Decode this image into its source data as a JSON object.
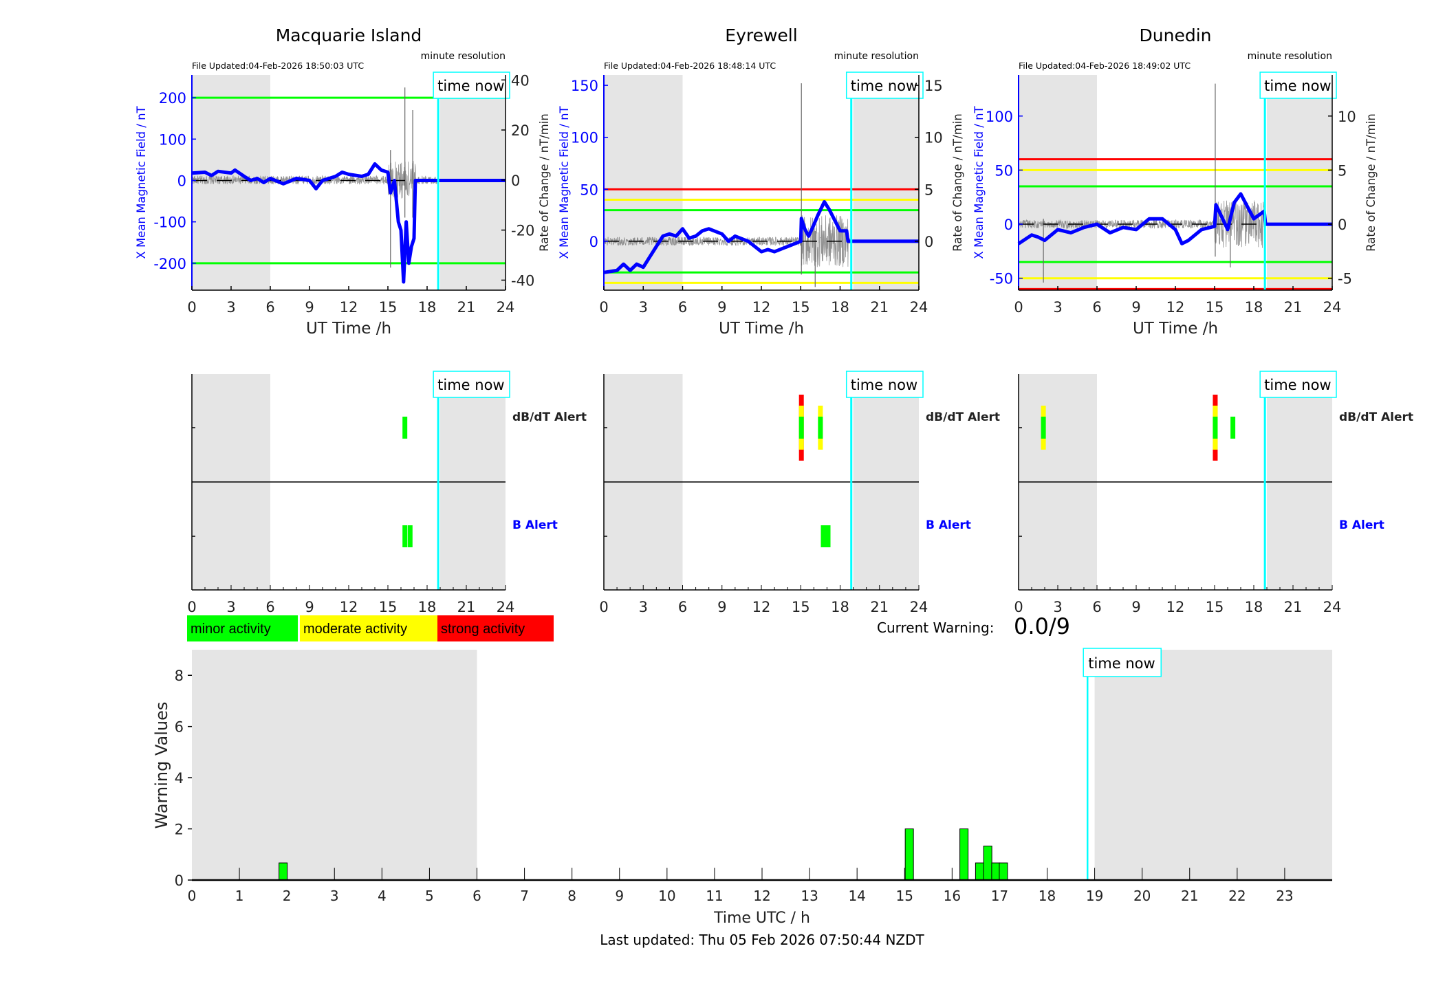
{
  "chart_data": [
    {
      "type": "line",
      "title": "Macquarie Island",
      "file_updated": "File Updated:04-Feb-2026 18:50:03 UTC",
      "resolution_note": "minute resolution",
      "time_now_label": "time now",
      "time_now_h": 18.85,
      "xlabel": "UT Time /h",
      "ylabel_left": "X Mean Magnetic Field / nT",
      "ylabel_right": "Rate of Change / nT/min",
      "xlim": [
        0,
        24
      ],
      "xticks": [
        "0",
        "3",
        "6",
        "9",
        "12",
        "15",
        "18",
        "21",
        "24"
      ],
      "ylim_left": [
        -265,
        255
      ],
      "yticks_left": [
        -200,
        -100,
        0,
        100,
        200
      ],
      "ylim_right": [
        -44,
        42
      ],
      "yticks_right": [
        -40,
        -20,
        0,
        20,
        40
      ],
      "night_shading_h": [
        [
          0,
          6
        ],
        [
          19,
          24
        ]
      ],
      "thresholds": [
        {
          "value": 200,
          "color": "#00ff00"
        },
        {
          "value": -200,
          "color": "#00ff00"
        }
      ],
      "x_mean_field": [
        [
          0,
          18
        ],
        [
          1,
          20
        ],
        [
          1.5,
          12
        ],
        [
          2,
          22
        ],
        [
          3,
          18
        ],
        [
          3.3,
          25
        ],
        [
          4,
          10
        ],
        [
          4.5,
          0
        ],
        [
          5,
          5
        ],
        [
          5.5,
          -5
        ],
        [
          6,
          5
        ],
        [
          7,
          -8
        ],
        [
          8,
          5
        ],
        [
          9,
          0
        ],
        [
          9.5,
          -20
        ],
        [
          10,
          0
        ],
        [
          11,
          10
        ],
        [
          11.5,
          20
        ],
        [
          12,
          15
        ],
        [
          13,
          10
        ],
        [
          13.5,
          15
        ],
        [
          14,
          40
        ],
        [
          14.5,
          25
        ],
        [
          15,
          20
        ],
        [
          15.2,
          -30
        ],
        [
          15.5,
          0
        ],
        [
          15.8,
          -100
        ],
        [
          16,
          -120
        ],
        [
          16.2,
          -245
        ],
        [
          16.4,
          -100
        ],
        [
          16.6,
          -200
        ],
        [
          16.8,
          -160
        ],
        [
          17,
          -140
        ],
        [
          17.1,
          0
        ],
        [
          24,
          0
        ]
      ],
      "rate_spikes": [
        [
          15.2,
          -35,
          12
        ],
        [
          16.3,
          -15,
          37
        ],
        [
          16.9,
          -15,
          28
        ]
      ],
      "rate_storm": [
        15,
        17.1,
        8
      ],
      "alerts": {
        "dbdt_label": "dB/dT Alert",
        "b_label": "B Alert",
        "dbdt": [
          {
            "h": 16.3,
            "level": "minor"
          }
        ],
        "b": [
          {
            "h": 16.3,
            "level": "minor"
          },
          {
            "h": 16.7,
            "level": "minor"
          }
        ]
      }
    },
    {
      "type": "line",
      "title": "Eyrewell",
      "file_updated": "File Updated:04-Feb-2026 18:48:14 UTC",
      "resolution_note": "minute resolution",
      "time_now_label": "time now",
      "time_now_h": 18.85,
      "xlabel": "UT Time /h",
      "ylabel_left": "X Mean Magnetic Field / nT",
      "ylabel_right": "Rate of Change / nT/min",
      "xlim": [
        0,
        24
      ],
      "xticks": [
        "0",
        "3",
        "6",
        "9",
        "12",
        "15",
        "18",
        "21",
        "24"
      ],
      "ylim_left": [
        -47,
        160
      ],
      "yticks_left": [
        0,
        50,
        100,
        150
      ],
      "ylim_right": [
        -4.7,
        16
      ],
      "yticks_right": [
        0,
        5,
        10,
        15
      ],
      "night_shading_h": [
        [
          0,
          6
        ],
        [
          19,
          24
        ]
      ],
      "thresholds": [
        {
          "value": 50,
          "color": "#ff0000"
        },
        {
          "value": 40,
          "color": "#ffff00"
        },
        {
          "value": 30,
          "color": "#00ff00"
        },
        {
          "value": -30,
          "color": "#00ff00"
        },
        {
          "value": -40,
          "color": "#ffff00"
        }
      ],
      "x_mean_field": [
        [
          0,
          -30
        ],
        [
          1,
          -28
        ],
        [
          1.5,
          -22
        ],
        [
          2,
          -28
        ],
        [
          2.5,
          -22
        ],
        [
          3,
          -25
        ],
        [
          3.5,
          -15
        ],
        [
          4,
          -5
        ],
        [
          4.5,
          5
        ],
        [
          5,
          7
        ],
        [
          5.5,
          5
        ],
        [
          6,
          12
        ],
        [
          6.5,
          3
        ],
        [
          7,
          5
        ],
        [
          7.5,
          10
        ],
        [
          8,
          12
        ],
        [
          9,
          7
        ],
        [
          9.5,
          0
        ],
        [
          10,
          5
        ],
        [
          11,
          0
        ],
        [
          12,
          -10
        ],
        [
          12.5,
          -8
        ],
        [
          13,
          -10
        ],
        [
          14,
          -5
        ],
        [
          15,
          0
        ],
        [
          15.05,
          22
        ],
        [
          15.3,
          12
        ],
        [
          15.6,
          5
        ],
        [
          15.9,
          13
        ],
        [
          16.3,
          25
        ],
        [
          16.8,
          38
        ],
        [
          17.2,
          30
        ],
        [
          18,
          10
        ],
        [
          18.5,
          10
        ],
        [
          18.6,
          0
        ],
        [
          24,
          0
        ]
      ],
      "rate_spikes": [
        [
          15.05,
          -3.2,
          15.2
        ],
        [
          16.1,
          -4.4,
          1
        ]
      ],
      "rate_storm": [
        15,
        18.6,
        2.5
      ],
      "alerts": {
        "dbdt_label": "dB/dT Alert",
        "b_label": "B Alert",
        "dbdt": [
          {
            "h": 15.05,
            "level": "strong"
          },
          {
            "h": 16.5,
            "level": "moderate"
          }
        ],
        "b": [
          {
            "h": 16.9,
            "level": "minor",
            "wide": true
          }
        ]
      }
    },
    {
      "type": "line",
      "title": "Dunedin",
      "file_updated": "File Updated:04-Feb-2026 18:49:02 UTC",
      "resolution_note": "minute resolution",
      "time_now_label": "time now",
      "time_now_h": 18.85,
      "xlabel": "UT Time /h",
      "ylabel_left": "X Mean Magnetic Field / nT",
      "ylabel_right": "Rate of Change / nT/min",
      "xlim": [
        0,
        24
      ],
      "xticks": [
        "0",
        "3",
        "6",
        "9",
        "12",
        "15",
        "18",
        "21",
        "24"
      ],
      "ylim_left": [
        -61,
        138
      ],
      "yticks_left": [
        -50,
        0,
        50,
        100
      ],
      "ylim_right": [
        -6.1,
        13.8
      ],
      "yticks_right": [
        -5,
        0,
        5,
        10
      ],
      "night_shading_h": [
        [
          0,
          6
        ],
        [
          19,
          24
        ]
      ],
      "thresholds": [
        {
          "value": 60,
          "color": "#ff0000"
        },
        {
          "value": 50,
          "color": "#ffff00"
        },
        {
          "value": 35,
          "color": "#00ff00"
        },
        {
          "value": -35,
          "color": "#00ff00"
        },
        {
          "value": -50,
          "color": "#ffff00"
        },
        {
          "value": -60,
          "color": "#ff0000"
        }
      ],
      "x_mean_field": [
        [
          0,
          -18
        ],
        [
          1,
          -10
        ],
        [
          1.5,
          -12
        ],
        [
          2,
          -15
        ],
        [
          3,
          -5
        ],
        [
          4,
          -8
        ],
        [
          5,
          -3
        ],
        [
          6,
          0
        ],
        [
          7,
          -8
        ],
        [
          8,
          -3
        ],
        [
          9,
          -5
        ],
        [
          10,
          5
        ],
        [
          11,
          5
        ],
        [
          12,
          -5
        ],
        [
          12.5,
          -18
        ],
        [
          13,
          -15
        ],
        [
          14,
          -5
        ],
        [
          15,
          -2
        ],
        [
          15.1,
          18
        ],
        [
          15.5,
          8
        ],
        [
          16,
          -5
        ],
        [
          16.5,
          20
        ],
        [
          17,
          28
        ],
        [
          18,
          5
        ],
        [
          18.8,
          12
        ],
        [
          18.9,
          0
        ],
        [
          24,
          0
        ]
      ],
      "rate_spikes": [
        [
          1.9,
          -5.4,
          0.5
        ],
        [
          15.05,
          -3,
          13
        ],
        [
          16.2,
          -4,
          1
        ]
      ],
      "rate_storm": [
        15,
        18.8,
        2.2
      ],
      "alerts": {
        "dbdt_label": "dB/dT Alert",
        "b_label": "B Alert",
        "dbdt": [
          {
            "h": 1.9,
            "level": "moderate"
          },
          {
            "h": 15.05,
            "level": "strong"
          },
          {
            "h": 16.4,
            "level": "minor"
          }
        ],
        "b": []
      }
    },
    {
      "type": "bar",
      "title": "",
      "xlabel": "Time UTC / h",
      "ylabel": "Warning Values",
      "xlim": [
        0,
        24
      ],
      "ylim": [
        0,
        9
      ],
      "xticks": [
        "0",
        "1",
        "2",
        "3",
        "4",
        "5",
        "6",
        "7",
        "8",
        "9",
        "10",
        "11",
        "12",
        "13",
        "14",
        "15",
        "16",
        "17",
        "18",
        "19",
        "20",
        "21",
        "22",
        "23"
      ],
      "yticks": [
        "0",
        "2",
        "4",
        "6",
        "8"
      ],
      "night_shading_h": [
        [
          0,
          6
        ],
        [
          19,
          24
        ]
      ],
      "time_now_label": "time now",
      "time_now_h": 18.85,
      "bars": [
        [
          1.92,
          0.67
        ],
        [
          15.1,
          2
        ],
        [
          16.25,
          2
        ],
        [
          16.58,
          0.67
        ],
        [
          16.75,
          1.33
        ],
        [
          16.92,
          0.67
        ],
        [
          17.08,
          0.67
        ]
      ],
      "bar_color": "#00ff00"
    }
  ],
  "legend": [
    {
      "label": "minor activity",
      "color": "#00ff00"
    },
    {
      "label": "moderate activity",
      "color": "#ffff00"
    },
    {
      "label": "strong activity",
      "color": "#ff0000"
    }
  ],
  "current_warning": {
    "label": "Current Warning:",
    "value": "0.0/9"
  },
  "footer": {
    "last_updated": "Last updated: Thu 05 Feb 2026 07:50:44 NZDT"
  },
  "colors": {
    "field": "#0000ff",
    "time_now": "#00ffff",
    "night": "#e5e5e5",
    "rate": "#555555"
  }
}
